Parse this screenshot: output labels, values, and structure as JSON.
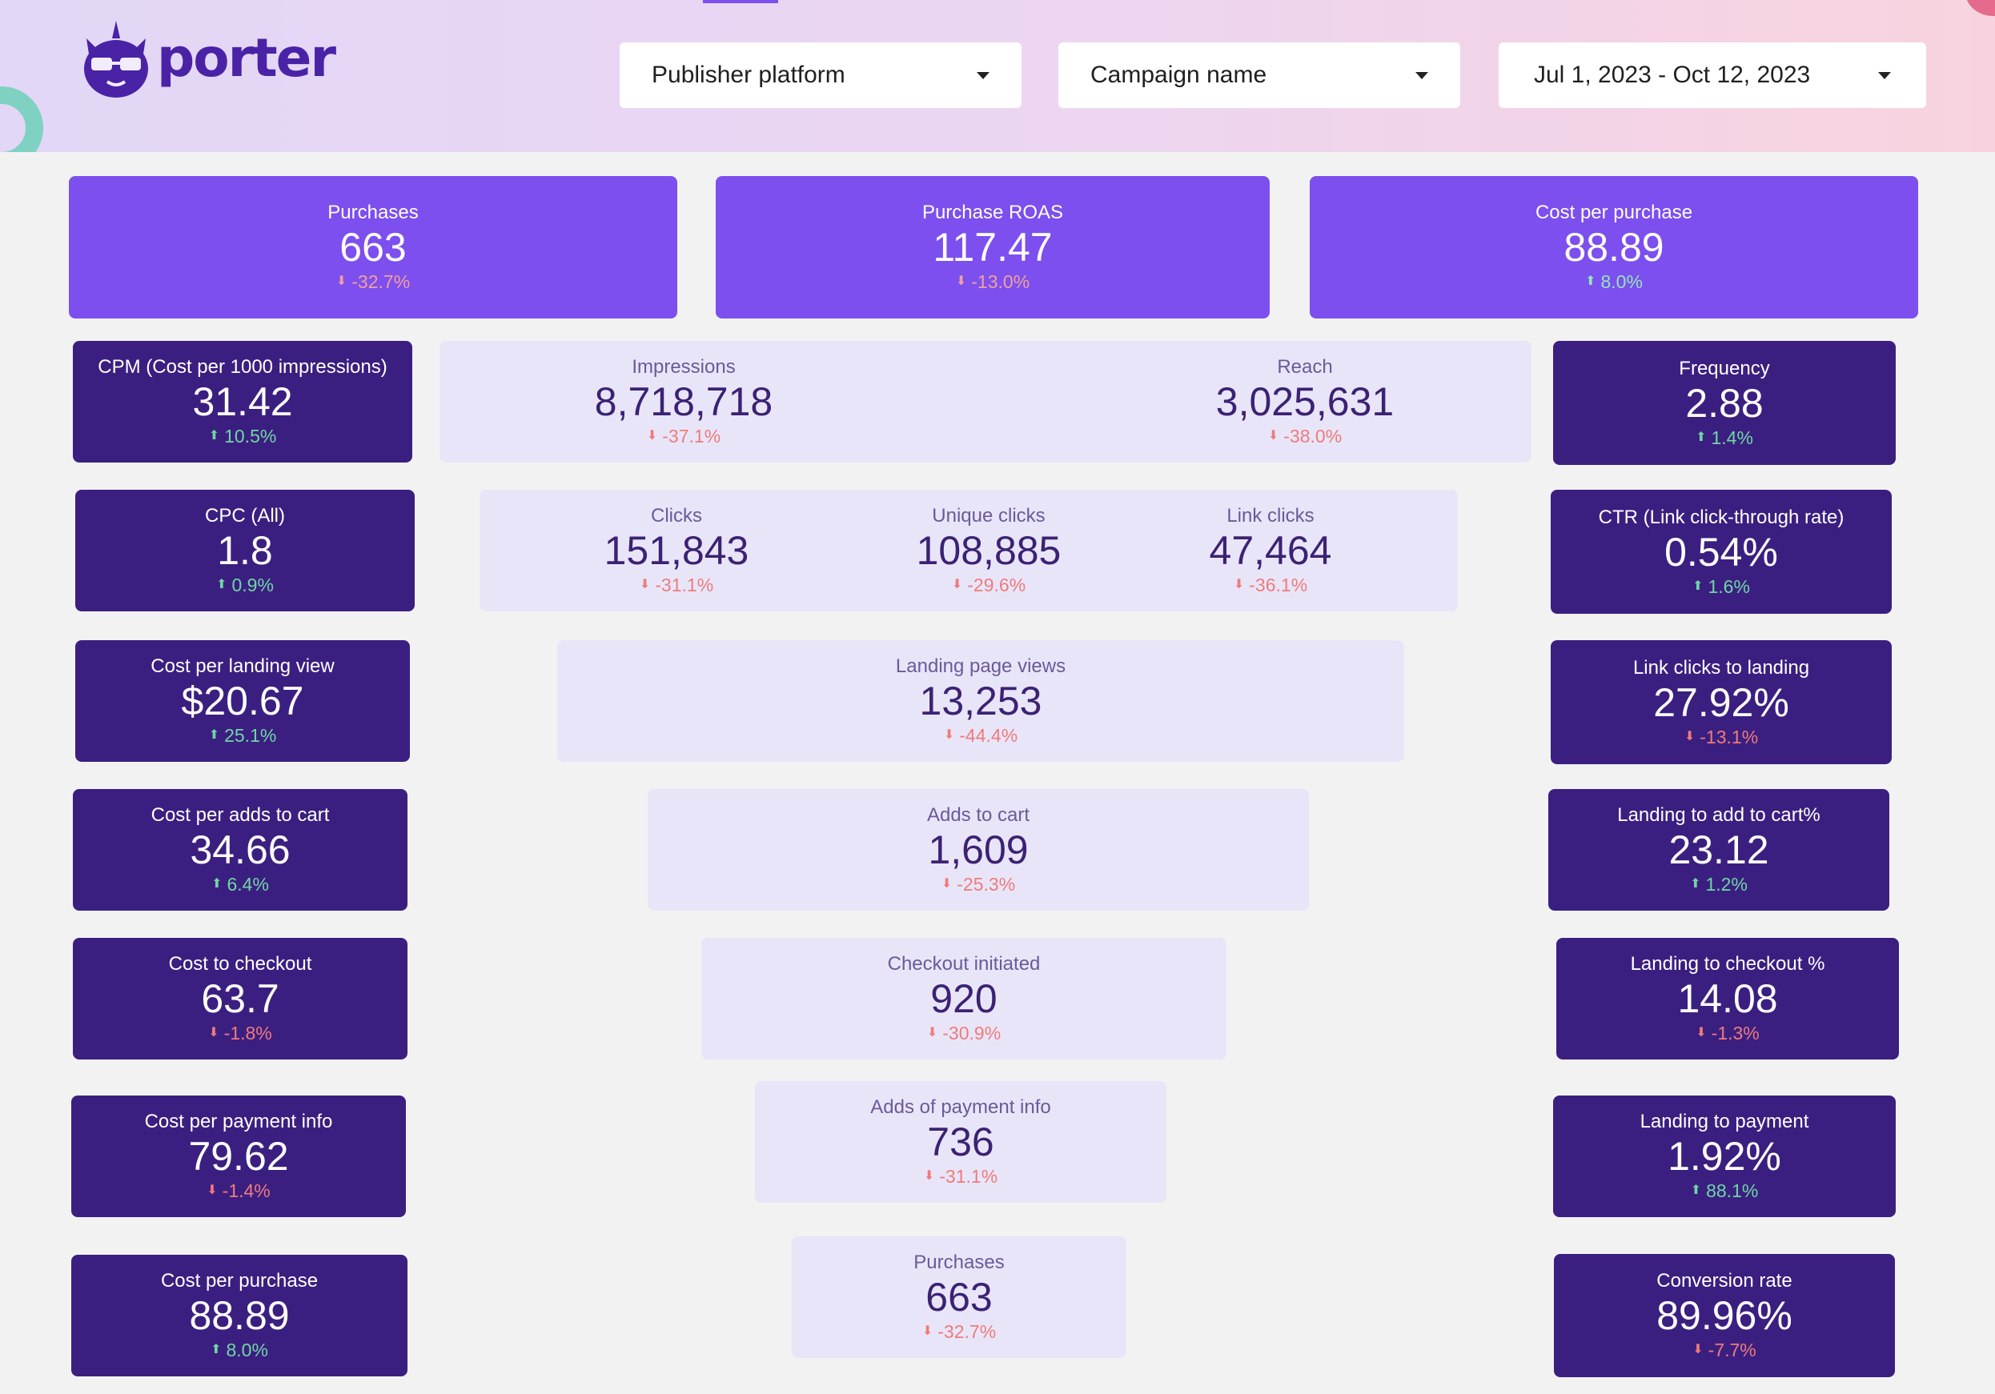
{
  "colors": {
    "accent_light": "#7c4fee",
    "accent_dark": "#3b1f80",
    "pale": "#e9e5f8",
    "down": "#ef7b7b",
    "up": "#6fd6a5"
  },
  "logo": {
    "text": "porter",
    "icon": "cat-icon"
  },
  "filters": {
    "publisher": "Publisher platform",
    "campaign": "Campaign name",
    "date_range": "Jul 1, 2023 - Oct 12, 2023"
  },
  "top": [
    {
      "label": "Purchases",
      "value": "663",
      "change": "-32.7%",
      "dir": "down"
    },
    {
      "label": "Purchase ROAS",
      "value": "117.47",
      "change": "-13.0%",
      "dir": "down"
    },
    {
      "label": "Cost per purchase",
      "value": "88.89",
      "change": "8.0%",
      "dir": "up"
    }
  ],
  "left": [
    {
      "label": "CPM (Cost per 1000 impressions)",
      "value": "31.42",
      "change": "10.5%",
      "dir": "up"
    },
    {
      "label": "CPC (All)",
      "value": "1.8",
      "change": "0.9%",
      "dir": "up"
    },
    {
      "label": "Cost per landing view",
      "value": "$20.67",
      "change": "25.1%",
      "dir": "up"
    },
    {
      "label": "Cost per adds to cart",
      "value": "34.66",
      "change": "6.4%",
      "dir": "up"
    },
    {
      "label": "Cost to checkout",
      "value": "63.7",
      "change": "-1.8%",
      "dir": "down"
    },
    {
      "label": "Cost per payment info",
      "value": "79.62",
      "change": "-1.4%",
      "dir": "down"
    },
    {
      "label": "Cost per purchase",
      "value": "88.89",
      "change": "8.0%",
      "dir": "up"
    }
  ],
  "right": [
    {
      "label": "Frequency",
      "value": "2.88",
      "change": "1.4%",
      "dir": "up"
    },
    {
      "label": "CTR (Link click-through rate)",
      "value": "0.54%",
      "change": "1.6%",
      "dir": "up"
    },
    {
      "label": "Link clicks to landing",
      "value": "27.92%",
      "change": "-13.1%",
      "dir": "down"
    },
    {
      "label": "Landing to add to cart%",
      "value": "23.12",
      "change": "1.2%",
      "dir": "up"
    },
    {
      "label": "Landing to checkout %",
      "value": "14.08",
      "change": "-1.3%",
      "dir": "down"
    },
    {
      "label": "Landing to payment",
      "value": "1.92%",
      "change": "88.1%",
      "dir": "up"
    },
    {
      "label": "Conversion rate",
      "value": "89.96%",
      "change": "-7.7%",
      "dir": "down"
    }
  ],
  "funnel": {
    "impressions": {
      "label": "Impressions",
      "value": "8,718,718",
      "change": "-37.1%",
      "dir": "down"
    },
    "reach": {
      "label": "Reach",
      "value": "3,025,631",
      "change": "-38.0%",
      "dir": "down"
    },
    "clicks": {
      "label": "Clicks",
      "value": "151,843",
      "change": "-31.1%",
      "dir": "down"
    },
    "unique_clicks": {
      "label": "Unique clicks",
      "value": "108,885",
      "change": "-29.6%",
      "dir": "down"
    },
    "link_clicks": {
      "label": "Link clicks",
      "value": "47,464",
      "change": "-36.1%",
      "dir": "down"
    },
    "landing_page_views": {
      "label": "Landing page views",
      "value": "13,253",
      "change": "-44.4%",
      "dir": "down"
    },
    "adds_to_cart": {
      "label": "Adds to cart",
      "value": "1,609",
      "change": "-25.3%",
      "dir": "down"
    },
    "checkout_initiated": {
      "label": "Checkout initiated",
      "value": "920",
      "change": "-30.9%",
      "dir": "down"
    },
    "adds_of_payment_info": {
      "label": "Adds of payment info",
      "value": "736",
      "change": "-31.1%",
      "dir": "down"
    },
    "purchases": {
      "label": "Purchases",
      "value": "663",
      "change": "-32.7%",
      "dir": "down"
    }
  }
}
